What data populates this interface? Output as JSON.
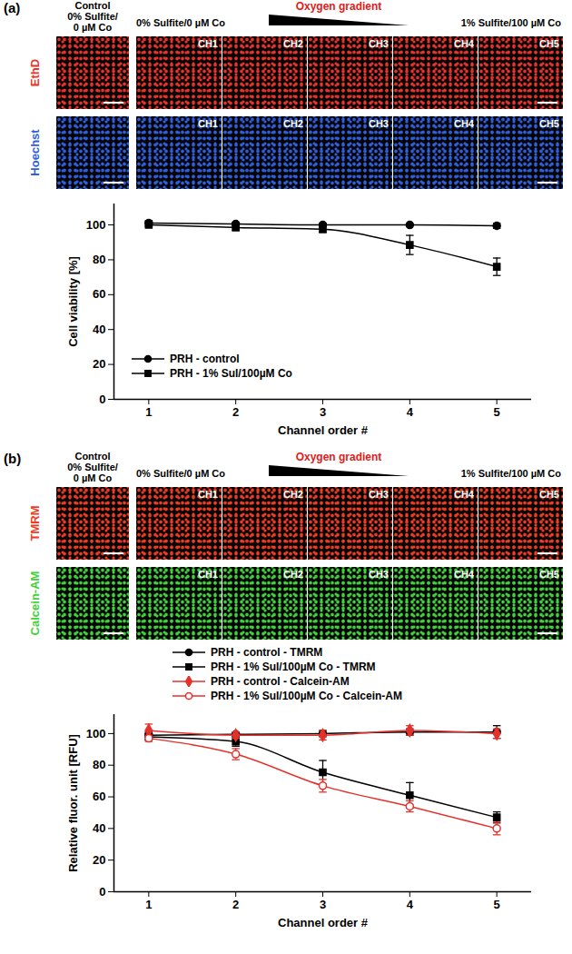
{
  "figure": {
    "panels": [
      {
        "label": "(a)",
        "control_label": [
          "Control",
          "0% Sulfite/",
          "0 µM Co"
        ],
        "gradient_start": "0% Sulfite/0 µM Co",
        "gradient_label": "Oxygen gradient",
        "gradient_end": "1% Sulfite/100 µM Co",
        "channels": [
          "CH1",
          "CH2",
          "CH3",
          "CH4",
          "CH5"
        ],
        "stains": [
          {
            "name": "EthD",
            "color": "#e8322a"
          },
          {
            "name": "Hoechst",
            "color": "#2f5fe0"
          }
        ]
      },
      {
        "label": "(b)",
        "control_label": [
          "Control",
          "0% Sulfite/",
          "0 µM Co"
        ],
        "gradient_start": "0% Sulfite/0 µM Co",
        "gradient_label": "Oxygen gradient",
        "gradient_end": "1% Sulfite/100 µM Co",
        "channels": [
          "CH1",
          "CH2",
          "CH3",
          "CH4",
          "CH5"
        ],
        "stains": [
          {
            "name": "TMRM",
            "color": "#f03a22"
          },
          {
            "name": "Calcein-AM",
            "color": "#3fd23a"
          }
        ]
      }
    ]
  },
  "chart_data": [
    {
      "type": "line",
      "xlabel": "Channel order #",
      "ylabel": "Cell viability [%]",
      "x": [
        1,
        2,
        3,
        4,
        5
      ],
      "xlim": [
        0.6,
        5.4
      ],
      "xticks": [
        1,
        2,
        3,
        4,
        5
      ],
      "ylim": [
        0,
        112
      ],
      "yticks": [
        0,
        20,
        40,
        60,
        80,
        100
      ],
      "grid": false,
      "legend": "bottom-left",
      "series": [
        {
          "name": "PRH - control",
          "color": "#000000",
          "marker": "circle",
          "line_style": "solid",
          "values": [
            101,
            100.5,
            100,
            100,
            99.5
          ],
          "errors": [
            1.5,
            1,
            1,
            0.5,
            1.5
          ]
        },
        {
          "name": "PRH - 1% Sul/100µM Co",
          "color": "#000000",
          "marker": "square",
          "line_style": "solid",
          "values": [
            100,
            98.5,
            97.5,
            88.5,
            76
          ],
          "errors": [
            1,
            1.5,
            1.5,
            5.5,
            5
          ]
        }
      ]
    },
    {
      "type": "line",
      "xlabel": "Channel order #",
      "ylabel": "Relative fluor. unit [RFU]",
      "x": [
        1,
        2,
        3,
        4,
        5
      ],
      "xlim": [
        0.6,
        5.4
      ],
      "xticks": [
        1,
        2,
        3,
        4,
        5
      ],
      "ylim": [
        0,
        112
      ],
      "yticks": [
        0,
        20,
        40,
        60,
        80,
        100
      ],
      "grid": false,
      "legend": "top",
      "series": [
        {
          "name": "PRH - control - TMRM",
          "color": "#000000",
          "marker": "circle",
          "line_style": "solid",
          "values": [
            99,
            99.5,
            100,
            101,
            101
          ],
          "errors": [
            2,
            1.5,
            2,
            2,
            4
          ]
        },
        {
          "name": "PRH - 1% Sul/100µM Co - TMRM",
          "color": "#000000",
          "marker": "square",
          "line_style": "solid",
          "values": [
            98,
            95,
            75.5,
            61,
            47
          ],
          "errors": [
            2,
            3,
            7.5,
            8,
            3.5
          ]
        },
        {
          "name": "PRH - control - Calcein-AM",
          "color": "#e4312b",
          "marker": "diamond",
          "line_style": "solid",
          "values": [
            102,
            99,
            99,
            102,
            100
          ],
          "errors": [
            4,
            2,
            3,
            3,
            3
          ]
        },
        {
          "name": "PRH - 1% Sul/100µM Co - Calcein-AM",
          "color": "#e4312b",
          "marker": "open-circle",
          "line_style": "solid",
          "values": [
            97,
            87,
            67,
            54,
            40
          ],
          "errors": [
            2,
            3.5,
            4,
            3.5,
            4
          ]
        }
      ]
    }
  ]
}
